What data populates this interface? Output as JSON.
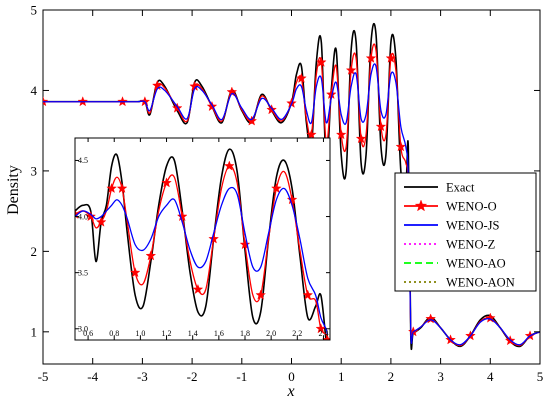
{
  "chart_data": [
    {
      "type": "line",
      "xlabel": "x",
      "ylabel": "Density",
      "xlim": [
        -5,
        5
      ],
      "ylim": [
        0.6,
        5
      ],
      "x_ticks": [
        -5,
        -4,
        -3,
        -2,
        -1,
        0,
        1,
        2,
        3,
        4,
        5
      ],
      "y_ticks": [
        1,
        2,
        3,
        4,
        5
      ],
      "x_tick_labels": [
        "-5",
        "-4",
        "-3",
        "-2",
        "-1",
        "0",
        "1",
        "2",
        "3",
        "4",
        "5"
      ],
      "y_tick_labels": [
        "1",
        "2",
        "3",
        "4",
        "5"
      ],
      "grid": false,
      "legend_position": "right",
      "series": [
        {
          "name": "Exact",
          "color": "#000000",
          "style": "solid",
          "x": [
            -5,
            -4.6,
            -4.2,
            -3.8,
            -3.4,
            -3.1,
            -2.95,
            -2.85,
            -2.7,
            -2.55,
            -2.3,
            -2.1,
            -1.95,
            -1.8,
            -1.6,
            -1.4,
            -1.2,
            -1.0,
            -0.8,
            -0.6,
            -0.4,
            -0.2,
            0.0,
            0.1,
            0.2,
            0.3,
            0.4,
            0.5,
            0.6,
            0.7,
            0.8,
            0.9,
            1.0,
            1.1,
            1.2,
            1.3,
            1.4,
            1.5,
            1.6,
            1.7,
            1.8,
            1.9,
            2.0,
            2.1,
            2.2,
            2.3,
            2.35,
            2.4,
            2.45,
            2.6,
            2.8,
            3.0,
            3.2,
            3.4,
            3.6,
            3.8,
            4.0,
            4.2,
            4.4,
            4.6,
            4.8,
            5.0
          ],
          "y": [
            3.86,
            3.86,
            3.86,
            3.86,
            3.86,
            3.86,
            3.86,
            3.7,
            4.1,
            4.05,
            3.75,
            3.6,
            4.1,
            4.05,
            3.8,
            3.6,
            4.0,
            3.75,
            3.6,
            3.95,
            3.75,
            3.6,
            3.85,
            4.2,
            4.3,
            3.6,
            3.3,
            4.35,
            4.6,
            3.1,
            4.0,
            4.5,
            3.2,
            3.0,
            4.5,
            4.6,
            3.1,
            3.2,
            4.6,
            4.7,
            3.3,
            3.2,
            4.6,
            4.4,
            3.0,
            2.8,
            3.3,
            0.95,
            0.98,
            1.05,
            1.18,
            1.05,
            0.9,
            0.82,
            0.95,
            1.15,
            1.2,
            1.05,
            0.88,
            0.82,
            0.95,
            1.0
          ]
        },
        {
          "name": "WENO-O",
          "color": "#ff0000",
          "style": "solid-star",
          "x": [
            -5,
            -4.6,
            -4.2,
            -3.8,
            -3.4,
            -3.1,
            -2.95,
            -2.85,
            -2.7,
            -2.55,
            -2.3,
            -2.1,
            -1.95,
            -1.8,
            -1.6,
            -1.4,
            -1.2,
            -1.0,
            -0.8,
            -0.6,
            -0.4,
            -0.2,
            0.0,
            0.1,
            0.2,
            0.3,
            0.4,
            0.5,
            0.6,
            0.7,
            0.8,
            0.9,
            1.0,
            1.1,
            1.2,
            1.3,
            1.4,
            1.5,
            1.6,
            1.7,
            1.8,
            1.9,
            2.0,
            2.1,
            2.2,
            2.3,
            2.35,
            2.4,
            2.45,
            2.6,
            2.8,
            3.0,
            3.2,
            3.4,
            3.6,
            3.8,
            4.0,
            4.2,
            4.4,
            4.6,
            4.8,
            5.0
          ],
          "y": [
            3.86,
            3.86,
            3.86,
            3.86,
            3.86,
            3.86,
            3.86,
            3.72,
            4.06,
            4.03,
            3.78,
            3.62,
            4.05,
            4.02,
            3.8,
            3.62,
            3.98,
            3.76,
            3.62,
            3.93,
            3.76,
            3.62,
            3.84,
            4.1,
            4.15,
            3.65,
            3.45,
            4.2,
            4.35,
            3.35,
            3.95,
            4.3,
            3.45,
            3.3,
            4.25,
            4.4,
            3.4,
            3.45,
            4.4,
            4.5,
            3.55,
            3.45,
            4.4,
            4.25,
            3.3,
            3.1,
            2.8,
            1.0,
            1.0,
            1.06,
            1.16,
            1.05,
            0.9,
            0.83,
            0.95,
            1.13,
            1.17,
            1.05,
            0.89,
            0.83,
            0.95,
            1.0
          ]
        },
        {
          "name": "WENO-JS",
          "color": "#0000ff",
          "style": "solid",
          "x": [
            -5,
            -4.6,
            -4.2,
            -3.8,
            -3.4,
            -3.1,
            -2.95,
            -2.85,
            -2.7,
            -2.55,
            -2.3,
            -2.1,
            -1.95,
            -1.8,
            -1.6,
            -1.4,
            -1.2,
            -1.0,
            -0.8,
            -0.6,
            -0.4,
            -0.2,
            0.0,
            0.1,
            0.2,
            0.3,
            0.4,
            0.5,
            0.6,
            0.7,
            0.8,
            0.9,
            1.0,
            1.1,
            1.2,
            1.3,
            1.4,
            1.5,
            1.6,
            1.7,
            1.8,
            1.9,
            2.0,
            2.1,
            2.2,
            2.3,
            2.35,
            2.4,
            2.45,
            2.6,
            2.8,
            3.0,
            3.2,
            3.4,
            3.6,
            3.8,
            4.0,
            4.2,
            4.4,
            4.6,
            4.8,
            5.0
          ],
          "y": [
            3.86,
            3.86,
            3.86,
            3.86,
            3.86,
            3.86,
            3.86,
            3.75,
            4.02,
            4.0,
            3.8,
            3.65,
            4.02,
            4.0,
            3.82,
            3.64,
            3.96,
            3.78,
            3.64,
            3.9,
            3.78,
            3.64,
            3.83,
            4.02,
            4.05,
            3.75,
            3.6,
            4.05,
            4.15,
            3.6,
            3.9,
            4.1,
            3.7,
            3.6,
            4.05,
            4.2,
            3.65,
            3.7,
            4.2,
            4.3,
            3.75,
            3.7,
            4.2,
            4.1,
            3.55,
            3.3,
            2.9,
            1.0,
            1.0,
            1.06,
            1.15,
            1.05,
            0.9,
            0.84,
            0.95,
            1.12,
            1.16,
            1.05,
            0.9,
            0.84,
            0.95,
            1.0
          ]
        }
      ]
    },
    {
      "type": "line",
      "xlim": [
        0.5,
        2.45
      ],
      "ylim": [
        2.9,
        4.7
      ],
      "x_ticks": [
        0.6,
        0.8,
        1.0,
        1.2,
        1.4,
        1.6,
        1.8,
        2.0,
        2.2,
        2.4
      ],
      "y_ticks": [
        3.0,
        3.5,
        4.0,
        4.5
      ],
      "x_tick_labels": [
        "0.6",
        "0.8",
        "1.0",
        "1.2",
        "1.4",
        "1.6",
        "1.8",
        "2.0",
        "2.2",
        "2.4"
      ],
      "y_tick_labels": [
        "3.0",
        "3.5",
        "4.0",
        "4.5"
      ],
      "grid": false,
      "series": [
        {
          "name": "Exact",
          "color": "#000000",
          "x": [
            0.5,
            0.56,
            0.62,
            0.66,
            0.7,
            0.74,
            0.78,
            0.82,
            0.86,
            0.9,
            0.96,
            1.02,
            1.08,
            1.14,
            1.2,
            1.26,
            1.32,
            1.38,
            1.44,
            1.5,
            1.56,
            1.62,
            1.68,
            1.74,
            1.8,
            1.86,
            1.92,
            1.98,
            2.04,
            2.1,
            2.16,
            2.22,
            2.28,
            2.34,
            2.38,
            2.42,
            2.43
          ],
          "y": [
            4.05,
            4.1,
            4.05,
            3.6,
            3.95,
            4.1,
            4.45,
            4.55,
            4.3,
            3.85,
            3.3,
            3.2,
            3.6,
            4.1,
            4.45,
            4.5,
            4.05,
            3.5,
            3.15,
            3.2,
            3.8,
            4.35,
            4.6,
            4.4,
            3.7,
            3.1,
            3.15,
            3.8,
            4.35,
            4.5,
            4.25,
            3.65,
            3.1,
            3.2,
            3.3,
            2.9,
            2.9
          ]
        },
        {
          "name": "WENO-O",
          "color": "#ff0000",
          "x": [
            0.5,
            0.56,
            0.62,
            0.66,
            0.7,
            0.74,
            0.78,
            0.82,
            0.86,
            0.9,
            0.96,
            1.02,
            1.08,
            1.14,
            1.2,
            1.26,
            1.32,
            1.38,
            1.44,
            1.5,
            1.56,
            1.62,
            1.68,
            1.74,
            1.8,
            1.86,
            1.92,
            1.98,
            2.04,
            2.1,
            2.16,
            2.22,
            2.28,
            2.34,
            2.38,
            2.42,
            2.43
          ],
          "y": [
            4.02,
            4.05,
            4.0,
            3.9,
            3.95,
            4.05,
            4.25,
            4.35,
            4.25,
            3.95,
            3.5,
            3.4,
            3.65,
            4.05,
            4.3,
            4.35,
            4.0,
            3.6,
            3.35,
            3.35,
            3.8,
            4.25,
            4.45,
            4.3,
            3.75,
            3.3,
            3.3,
            3.8,
            4.25,
            4.4,
            4.15,
            3.7,
            3.3,
            3.25,
            3.0,
            2.95,
            2.9
          ]
        },
        {
          "name": "WENO-JS",
          "color": "#0000ff",
          "x": [
            0.5,
            0.56,
            0.62,
            0.66,
            0.7,
            0.74,
            0.78,
            0.82,
            0.86,
            0.9,
            0.96,
            1.02,
            1.08,
            1.14,
            1.2,
            1.26,
            1.32,
            1.38,
            1.44,
            1.5,
            1.56,
            1.62,
            1.68,
            1.74,
            1.8,
            1.86,
            1.92,
            1.98,
            2.04,
            2.1,
            2.16,
            2.22,
            2.28,
            2.34,
            2.38,
            2.42,
            2.43
          ],
          "y": [
            4.0,
            4.05,
            4.02,
            3.98,
            4.0,
            4.05,
            4.1,
            4.15,
            4.1,
            3.98,
            3.75,
            3.7,
            3.8,
            4.0,
            4.1,
            4.15,
            3.95,
            3.7,
            3.55,
            3.6,
            3.85,
            4.1,
            4.25,
            4.2,
            3.85,
            3.55,
            3.55,
            3.85,
            4.15,
            4.25,
            4.1,
            3.8,
            3.45,
            3.3,
            3.1,
            3.0,
            2.95
          ]
        }
      ]
    }
  ],
  "legend": {
    "entries": [
      {
        "name": "Exact",
        "color": "#000000",
        "style": "solid"
      },
      {
        "name": "WENO-O",
        "color": "#ff0000",
        "style": "solid-star"
      },
      {
        "name": "WENO-JS",
        "color": "#0000ff",
        "style": "solid"
      },
      {
        "name": "WENO-Z",
        "color": "#ff00ff",
        "style": "dotted"
      },
      {
        "name": "WENO-AO",
        "color": "#00ff00",
        "style": "dashed"
      },
      {
        "name": "WENO-AON",
        "color": "#808000",
        "style": "dotted"
      }
    ]
  }
}
